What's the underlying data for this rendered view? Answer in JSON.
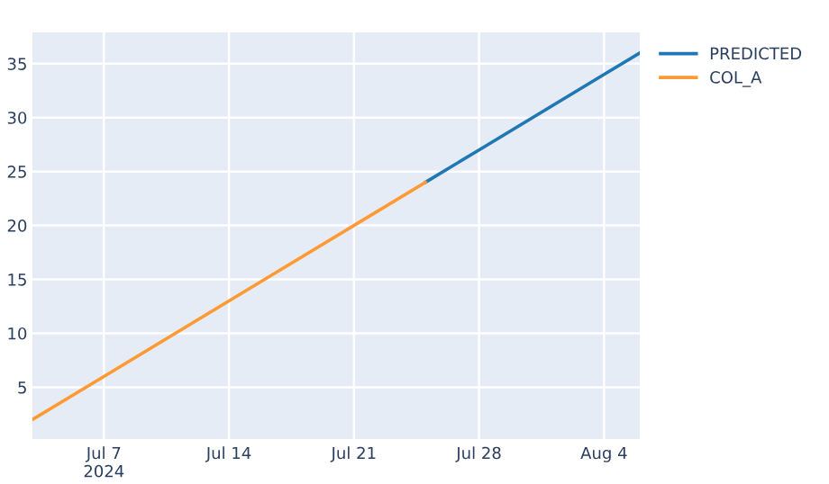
{
  "chart_data": {
    "type": "line",
    "series": [
      {
        "name": "PREDICTED",
        "color": "#1f77b4",
        "x": [
          "2024-07-25",
          "2024-07-28",
          "2024-08-01",
          "2024-08-04",
          "2024-08-06"
        ],
        "values": [
          24,
          27,
          31,
          34,
          36
        ]
      },
      {
        "name": "COL_A",
        "color": "#ff9933",
        "x": [
          "2024-07-03",
          "2024-07-07",
          "2024-07-14",
          "2024-07-21",
          "2024-07-25"
        ],
        "values": [
          2,
          6,
          13,
          20,
          24
        ]
      }
    ],
    "xlim": [
      "2024-07-03",
      "2024-08-06"
    ],
    "xticks": [
      {
        "value": "2024-07-07",
        "label": "Jul 7\n2024"
      },
      {
        "value": "2024-07-14",
        "label": "Jul 14"
      },
      {
        "value": "2024-07-21",
        "label": "Jul 21"
      },
      {
        "value": "2024-07-28",
        "label": "Jul 28"
      },
      {
        "value": "2024-08-04",
        "label": "Aug 4"
      }
    ],
    "ylim": [
      0.2,
      37.9
    ],
    "yticks": [
      5,
      10,
      15,
      20,
      25,
      30,
      35
    ],
    "grid": true,
    "legend": "top right",
    "line_style": "solid"
  }
}
